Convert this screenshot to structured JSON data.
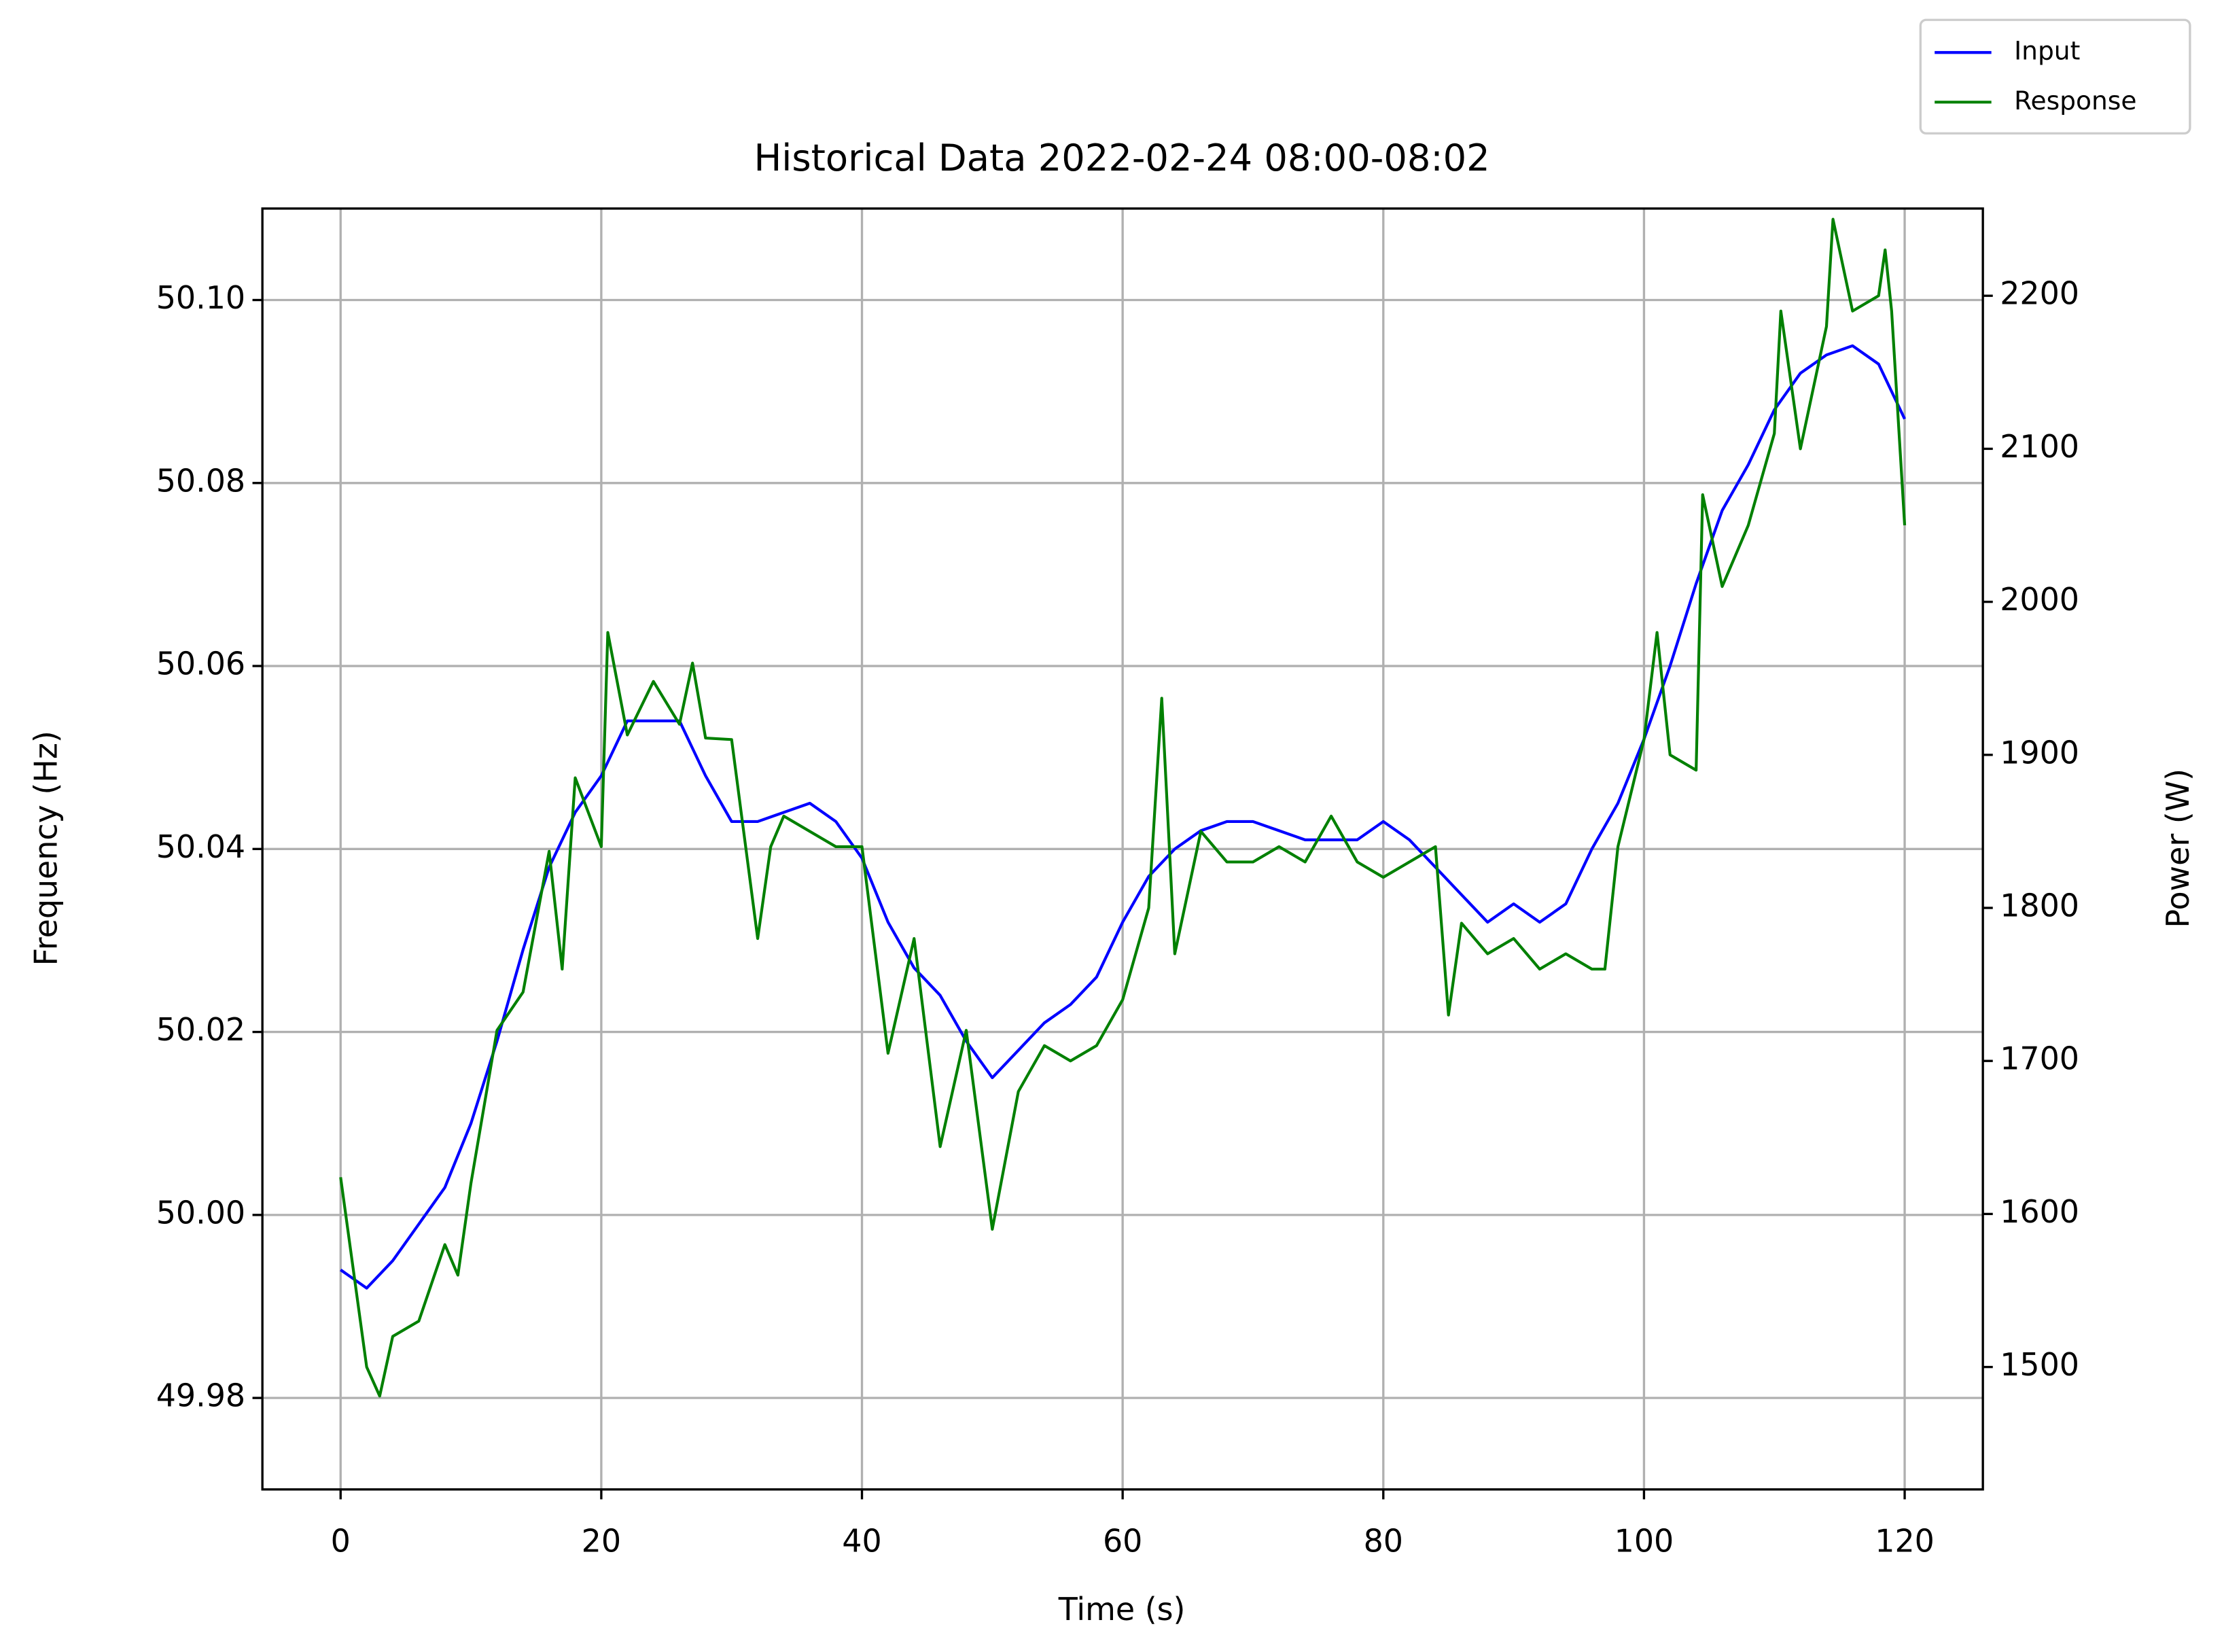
{
  "chart_data": {
    "type": "line",
    "title": "Historical Data 2022-02-24 08:00-08:02",
    "x_label": "Time (s)",
    "y_label": "Frequency (Hz)",
    "y2_label": "Power (W)",
    "xlim": [
      -6,
      126
    ],
    "xticks": [
      0,
      20,
      40,
      60,
      80,
      100,
      120
    ],
    "ylim": [
      49.97,
      50.11
    ],
    "yticks": [
      49.98,
      {
        "value": 50.0,
        "label": "50.00"
      },
      50.02,
      50.04,
      50.06,
      50.08,
      {
        "value": 50.1,
        "label": "50.10"
      }
    ],
    "y2lim": [
      1420,
      2257
    ],
    "y2ticks": [
      1500,
      1600,
      1700,
      1800,
      1900,
      2000,
      2100,
      2200
    ],
    "grid": true,
    "legend": "upper right",
    "series": [
      {
        "name": "Input",
        "color": "#0000ff",
        "x": [
          0,
          2,
          4,
          6,
          8,
          10,
          12,
          14,
          16,
          18,
          20,
          22,
          24,
          26,
          28,
          30,
          32,
          34,
          36,
          38,
          40,
          42,
          44,
          46,
          48,
          50,
          52,
          54,
          56,
          58,
          60,
          62,
          64,
          66,
          68,
          70,
          72,
          74,
          76,
          78,
          80,
          82,
          84,
          86,
          88,
          90,
          92,
          94,
          96,
          98,
          100,
          102,
          104,
          106,
          108,
          110,
          112,
          114,
          116,
          118,
          120
        ],
        "values": [
          49.994,
          49.992,
          49.995,
          49.999,
          50.003,
          50.01,
          50.019,
          50.029,
          50.038,
          50.044,
          50.048,
          50.054,
          50.054,
          50.054,
          50.048,
          50.043,
          50.043,
          50.044,
          50.045,
          50.043,
          50.039,
          50.032,
          50.027,
          50.024,
          50.019,
          50.015,
          50.018,
          50.021,
          50.023,
          50.026,
          50.032,
          50.037,
          50.04,
          50.042,
          50.043,
          50.043,
          50.042,
          50.041,
          50.041,
          50.041,
          50.043,
          50.041,
          50.038,
          50.035,
          50.032,
          50.034,
          50.032,
          50.034,
          50.04,
          50.045,
          50.052,
          50.06,
          50.069,
          50.077,
          50.082,
          50.088,
          50.092,
          50.094,
          50.095,
          50.093,
          50.087
        ]
      },
      {
        "name": "Response",
        "color": "#008000",
        "axis": "y2",
        "x": [
          0,
          2,
          3,
          4,
          6,
          8,
          9,
          10,
          12,
          14,
          16,
          17,
          18,
          20,
          20.5,
          22,
          24,
          26,
          27,
          28,
          30,
          32,
          33,
          34,
          36,
          38,
          40,
          42,
          44,
          46,
          48,
          50,
          52,
          54,
          56,
          58,
          60,
          62,
          63,
          64,
          66,
          68,
          70,
          72,
          74,
          76,
          78,
          80,
          82,
          84,
          85,
          86,
          88,
          90,
          92,
          94,
          96,
          97,
          98,
          100,
          101,
          102,
          104,
          104.5,
          106,
          108,
          110,
          110.5,
          112,
          114,
          114.5,
          116,
          118,
          118.5,
          119,
          120
        ],
        "values": [
          1624,
          1500,
          1481,
          1520,
          1530,
          1580,
          1560,
          1620,
          1720,
          1745,
          1837,
          1760,
          1885,
          1840,
          1980,
          1913,
          1948,
          1920,
          1960,
          1911,
          1910,
          1780,
          1840,
          1860,
          1850,
          1840,
          1840,
          1705,
          1780,
          1644,
          1720,
          1590,
          1680,
          1710,
          1700,
          1710,
          1740,
          1800,
          1937,
          1770,
          1850,
          1830,
          1830,
          1840,
          1830,
          1860,
          1830,
          1820,
          1830,
          1840,
          1730,
          1790,
          1770,
          1780,
          1760,
          1770,
          1760,
          1760,
          1840,
          1910,
          1980,
          1900,
          1890,
          2070,
          2010,
          2050,
          2110,
          2190,
          2100,
          2180,
          2250,
          2190,
          2200,
          2230,
          2190,
          2050
        ]
      }
    ]
  }
}
